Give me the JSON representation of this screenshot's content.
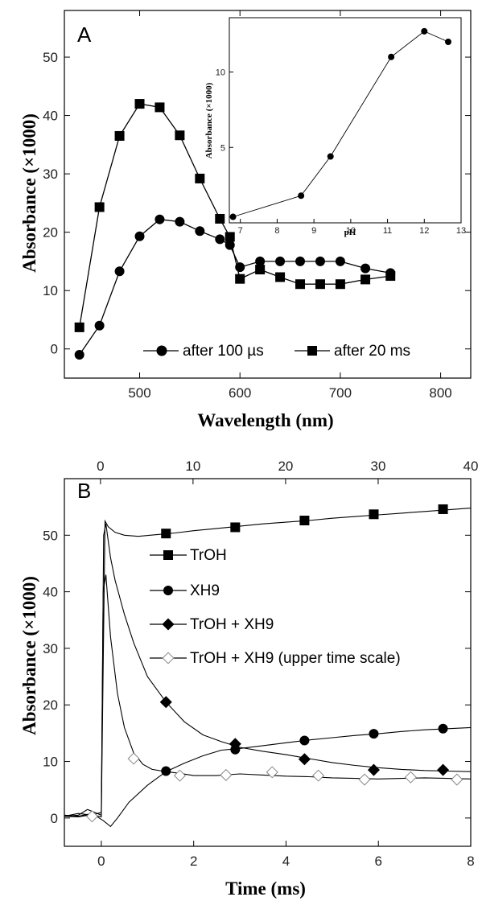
{
  "chart_data": [
    {
      "panel": "A",
      "type": "line",
      "xlabel": "Wavelength (nm)",
      "ylabel": "Absorbance (×1000)",
      "xlim": [
        425,
        830
      ],
      "ylim": [
        -5,
        58
      ],
      "xticks": [
        500,
        600,
        700,
        800
      ],
      "yticks": [
        0,
        10,
        20,
        30,
        40,
        50
      ],
      "grid": false,
      "legend": "bottom",
      "series": [
        {
          "name": "after 100 µs",
          "marker": "circle",
          "color": "#000000",
          "x": [
            440,
            460,
            480,
            500,
            520,
            540,
            560,
            580,
            590,
            600,
            620,
            640,
            660,
            680,
            700,
            725,
            750
          ],
          "y": [
            -1,
            4,
            13.3,
            19.3,
            22.2,
            21.8,
            20.2,
            18.8,
            17.8,
            14,
            15,
            15,
            15,
            15,
            15,
            13.8,
            13
          ]
        },
        {
          "name": "after 20 ms",
          "marker": "square",
          "color": "#000000",
          "x": [
            440,
            460,
            480,
            500,
            520,
            540,
            560,
            580,
            590,
            600,
            620,
            640,
            660,
            680,
            700,
            725,
            750
          ],
          "y": [
            3.7,
            24.3,
            36.5,
            42,
            41.4,
            36.6,
            29.2,
            22.3,
            19.2,
            12,
            13.6,
            12.3,
            11.1,
            11.1,
            11.1,
            11.9,
            12.5
          ]
        }
      ],
      "inset": {
        "type": "line",
        "xlabel": "pH",
        "ylabel": "Absorbance (×1000)",
        "xlim": [
          6.7,
          13
        ],
        "ylim": [
          0,
          13.6
        ],
        "xticks": [
          7,
          8,
          9,
          10,
          11,
          12,
          13
        ],
        "yticks": [
          0,
          5,
          10
        ],
        "series": [
          {
            "marker": "circle",
            "x": [
              6.8,
              8.65,
              9.45,
              11.1,
              12,
              12.65
            ],
            "y": [
              0.4,
              1.8,
              4.4,
              11,
              12.7,
              12
            ]
          }
        ]
      }
    },
    {
      "panel": "B",
      "type": "line",
      "xlabel": "Time (ms)",
      "ylabel": "Absorbance (×1000)",
      "xlim": [
        -0.8,
        8
      ],
      "ylim": [
        -5,
        60
      ],
      "xticks": [
        0,
        2,
        4,
        6,
        8
      ],
      "yticks": [
        0,
        10,
        20,
        30,
        40,
        50
      ],
      "top_axis": {
        "xlim": [
          -3.9,
          40
        ],
        "xticks": [
          0,
          10,
          20,
          30,
          40
        ]
      },
      "grid": false,
      "legend": "middle-right",
      "series": [
        {
          "name": "TrOH",
          "marker": "square",
          "filled": true,
          "x": [
            -0.8,
            -0.5,
            -0.3,
            0,
            0.08,
            0.15,
            0.3,
            0.5,
            0.8,
            1.2,
            1.6,
            2,
            2.5,
            3,
            3.5,
            4,
            4.5,
            5,
            5.5,
            6,
            6.5,
            7,
            7.5,
            8
          ],
          "y": [
            0.3,
            0.5,
            1.5,
            0.5,
            52.5,
            51.5,
            50.5,
            50,
            49.8,
            50.1,
            50.4,
            50.8,
            51.2,
            51.6,
            52,
            52.3,
            52.6,
            53,
            53.3,
            53.6,
            53.9,
            54.2,
            54.5,
            54.8
          ],
          "marker_x": [
            1.4,
            2.9,
            4.4,
            5.9,
            7.4
          ],
          "marker_y": [
            50.3,
            51.4,
            52.6,
            53.7,
            54.6
          ]
        },
        {
          "name": "XH9",
          "marker": "circle",
          "filled": true,
          "x": [
            -0.8,
            -0.5,
            -0.2,
            0.05,
            0.2,
            0.35,
            0.6,
            1,
            1.4,
            1.8,
            2.2,
            2.6,
            3,
            3.5,
            4,
            4.5,
            5,
            5.5,
            6,
            6.5,
            7,
            7.5,
            8
          ],
          "y": [
            0.5,
            0.3,
            0.8,
            -0.5,
            -1.5,
            0,
            2.8,
            5.8,
            8.2,
            9.7,
            11,
            12,
            12.3,
            12.8,
            13.3,
            13.8,
            14.2,
            14.6,
            14.9,
            15.3,
            15.6,
            15.8,
            16
          ],
          "marker_x": [
            1.4,
            2.9,
            4.4,
            5.9,
            7.4
          ],
          "marker_y": [
            8.3,
            12.1,
            13.7,
            14.9,
            15.8
          ]
        },
        {
          "name": "TrOH + XH9",
          "marker": "diamond",
          "filled": true,
          "x": [
            -0.8,
            -0.5,
            -0.2,
            0,
            0.05,
            0.1,
            0.2,
            0.3,
            0.5,
            0.7,
            1,
            1.4,
            1.8,
            2.2,
            2.6,
            3,
            3.5,
            4,
            4.5,
            5,
            5.5,
            6,
            6.5,
            7,
            7.5,
            8
          ],
          "y": [
            0.3,
            0.8,
            0.5,
            1,
            50,
            52,
            46,
            42,
            36,
            31,
            25,
            20.5,
            17,
            14.7,
            13.5,
            12.5,
            11.8,
            11.2,
            10.5,
            9.8,
            9.3,
            8.9,
            8.6,
            8.4,
            8.3,
            8.2
          ],
          "marker_x": [
            1.4,
            2.9,
            4.4,
            5.9,
            7.4
          ],
          "marker_y": [
            20.5,
            13.1,
            10.4,
            8.5,
            8.5
          ]
        },
        {
          "name": "TrOH + XH9 (upper time scale)",
          "marker": "diamond",
          "filled": false,
          "x": [
            -0.8,
            -0.5,
            -0.2,
            0,
            0.04,
            0.1,
            0.2,
            0.35,
            0.5,
            0.7,
            0.9,
            1.1,
            1.4,
            1.7,
            2,
            2.5,
            3,
            3.5,
            4,
            4.5,
            5,
            5.5,
            6,
            6.5,
            7,
            7.5,
            8
          ],
          "y": [
            0.3,
            0.2,
            0.6,
            0.2,
            40,
            43,
            32,
            22,
            16,
            11.5,
            9.5,
            8.6,
            8.2,
            7.9,
            7.5,
            7.5,
            7.8,
            7.6,
            7.4,
            7.3,
            7.1,
            7,
            6.9,
            7,
            7.1,
            7,
            6.9
          ],
          "marker_x": [
            -0.2,
            0.7,
            1.7,
            2.7,
            3.7,
            4.7,
            5.7,
            6.7,
            7.7
          ],
          "marker_y": [
            0.3,
            10.5,
            7.5,
            7.6,
            8.1,
            7.5,
            6.8,
            7.2,
            6.8
          ]
        }
      ]
    }
  ]
}
